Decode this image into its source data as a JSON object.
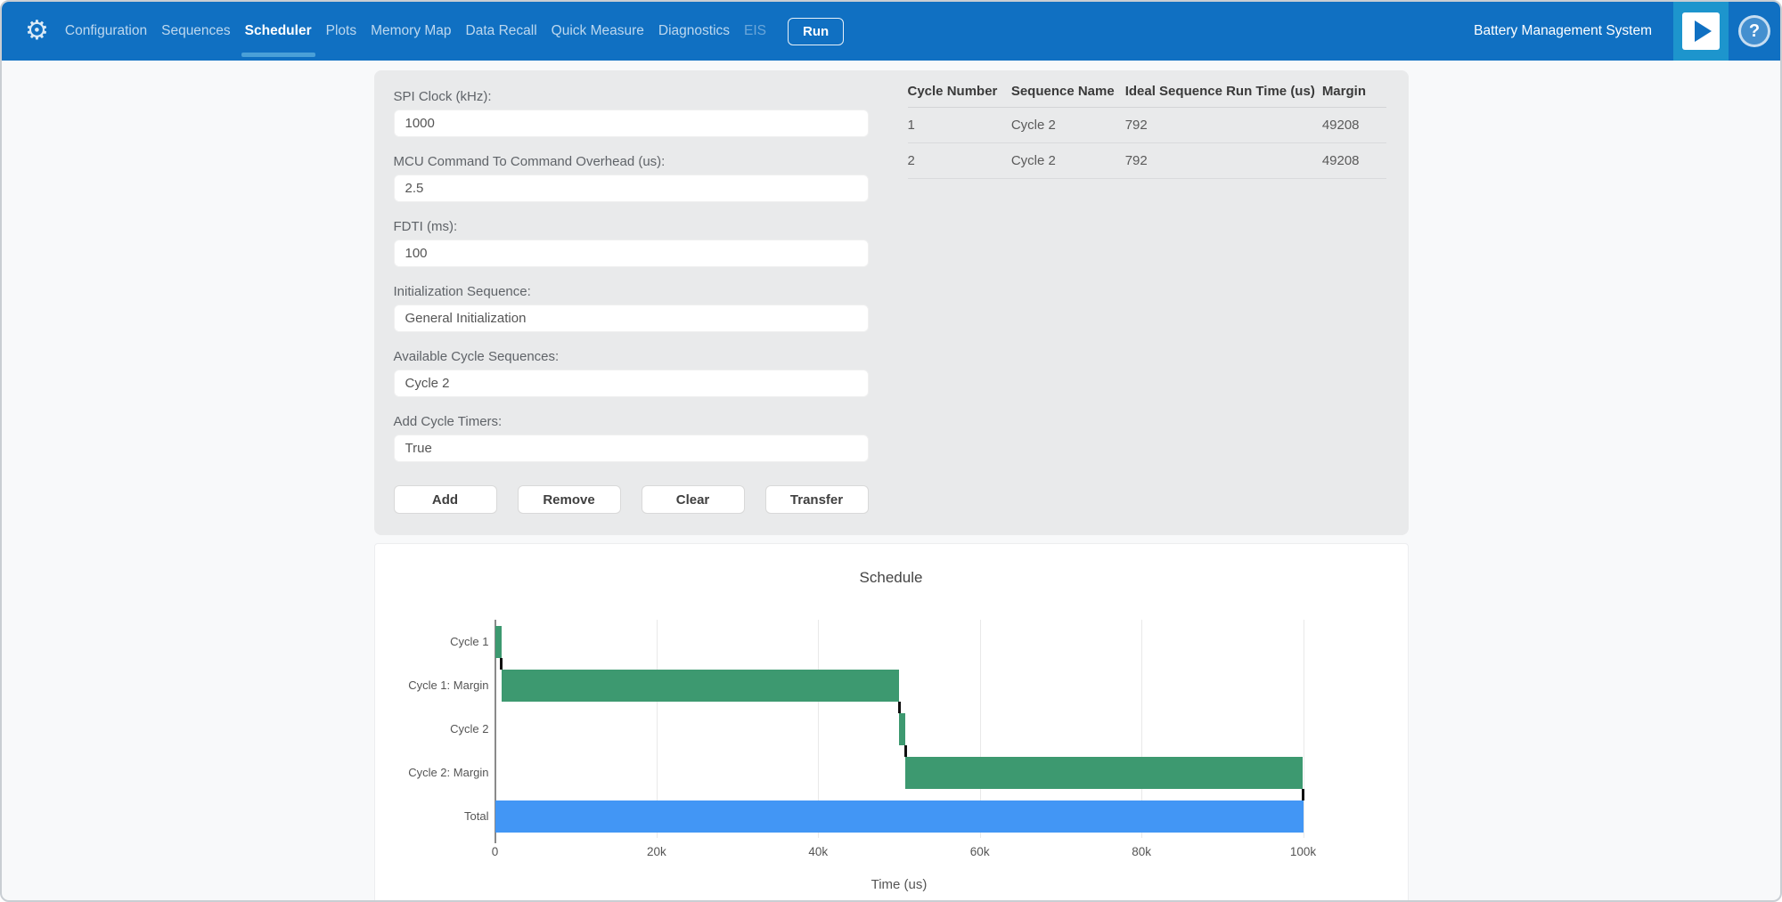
{
  "app": {
    "title": "Battery Management System"
  },
  "colors": {
    "navbar_blue": "#1070c2",
    "underline_blue": "#4aa0d8",
    "play_block_blue": "#1d95cd",
    "panel_gray": "#e9eaeb",
    "page_bg": "#f8f9fa",
    "bar_green": "#3d9970",
    "bar_blue": "#4296f5"
  },
  "icons": {
    "gear_icon": "⚙",
    "help_icon": "?",
    "play_icon": "triangle-right"
  },
  "navbar": {
    "items": [
      {
        "label": "Configuration",
        "active": false,
        "disabled": false
      },
      {
        "label": "Sequences",
        "active": false,
        "disabled": false
      },
      {
        "label": "Scheduler",
        "active": true,
        "disabled": false
      },
      {
        "label": "Plots",
        "active": false,
        "disabled": false
      },
      {
        "label": "Memory Map",
        "active": false,
        "disabled": false
      },
      {
        "label": "Data Recall",
        "active": false,
        "disabled": false
      },
      {
        "label": "Quick Measure",
        "active": false,
        "disabled": false
      },
      {
        "label": "Diagnostics",
        "active": false,
        "disabled": false
      },
      {
        "label": "EIS",
        "active": false,
        "disabled": true
      }
    ],
    "run_label": "Run"
  },
  "form": {
    "fields": [
      {
        "label": "SPI Clock (kHz):",
        "value": "1000"
      },
      {
        "label": "MCU Command To Command Overhead (us):",
        "value": "2.5"
      },
      {
        "label": "FDTI (ms):",
        "value": "100"
      },
      {
        "label": "Initialization Sequence:",
        "value": "General Initialization"
      },
      {
        "label": "Available Cycle Sequences:",
        "value": "Cycle 2"
      },
      {
        "label": "Add Cycle Timers:",
        "value": "True"
      }
    ],
    "buttons": [
      "Add",
      "Remove",
      "Clear",
      "Transfer"
    ]
  },
  "table": {
    "headers": [
      "Cycle Number",
      "Sequence Name",
      "Ideal Sequence Run Time (us)",
      "Margin"
    ],
    "rows": [
      [
        "1",
        "Cycle 2",
        "792",
        "49208"
      ],
      [
        "2",
        "Cycle 2",
        "792",
        "49208"
      ]
    ]
  },
  "chart_data": {
    "type": "bar",
    "subtype": "horizontal-gantt-waterfall",
    "title": "Schedule",
    "xlabel": "Time (us)",
    "categories": [
      "Cycle 1",
      "Cycle 1: Margin",
      "Cycle 2",
      "Cycle 2: Margin",
      "Total"
    ],
    "bars": [
      {
        "label": "Cycle 1",
        "start": 0,
        "end": 792,
        "color": "#3d9970"
      },
      {
        "label": "Cycle 1: Margin",
        "start": 792,
        "end": 50000,
        "color": "#3d9970"
      },
      {
        "label": "Cycle 2",
        "start": 50000,
        "end": 50792,
        "color": "#3d9970"
      },
      {
        "label": "Cycle 2: Margin",
        "start": 50792,
        "end": 100000,
        "color": "#3d9970"
      },
      {
        "label": "Total",
        "start": 0,
        "end": 100000,
        "color": "#4296f5"
      }
    ],
    "connectors": [
      792,
      50000,
      50792,
      100000
    ],
    "xlim": [
      0,
      100000
    ],
    "xticks": [
      {
        "value": 0,
        "label": "0"
      },
      {
        "value": 20000,
        "label": "20k"
      },
      {
        "value": 40000,
        "label": "40k"
      },
      {
        "value": 60000,
        "label": "60k"
      },
      {
        "value": 80000,
        "label": "80k"
      },
      {
        "value": 100000,
        "label": "100k"
      }
    ],
    "grid": true,
    "legend": false
  }
}
